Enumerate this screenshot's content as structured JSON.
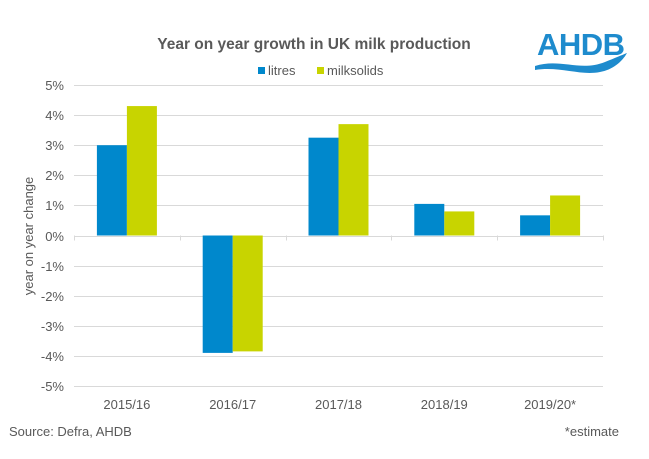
{
  "chart_data": {
    "type": "bar",
    "title": "Year on year growth in UK milk production",
    "xlabel": "",
    "ylabel": "year on year change",
    "categories": [
      "2015/16",
      "2016/17",
      "2017/18",
      "2018/19",
      "2019/20*"
    ],
    "series": [
      {
        "name": "litres",
        "color": "#0088cc",
        "values": [
          3.0,
          -3.9,
          3.25,
          1.05,
          0.67
        ]
      },
      {
        "name": "milksolids",
        "color": "#c8d400",
        "values": [
          4.3,
          -3.85,
          3.7,
          0.8,
          1.33
        ]
      }
    ],
    "ylim": [
      -5,
      5
    ],
    "yticks": [
      5,
      4,
      3,
      2,
      1,
      0,
      -1,
      -2,
      -3,
      -4,
      -5
    ],
    "ytick_labels": [
      "5%",
      "4%",
      "3%",
      "2%",
      "1%",
      "0%",
      "-1%",
      "-2%",
      "-3%",
      "-4%",
      "-5%"
    ],
    "grid": true,
    "legend_position": "top-center",
    "unit": "%"
  },
  "logo": {
    "text": "AHDB",
    "color": "#1e8bcd"
  },
  "footer": {
    "source": "Source: Defra, AHDB",
    "note": "*estimate"
  }
}
